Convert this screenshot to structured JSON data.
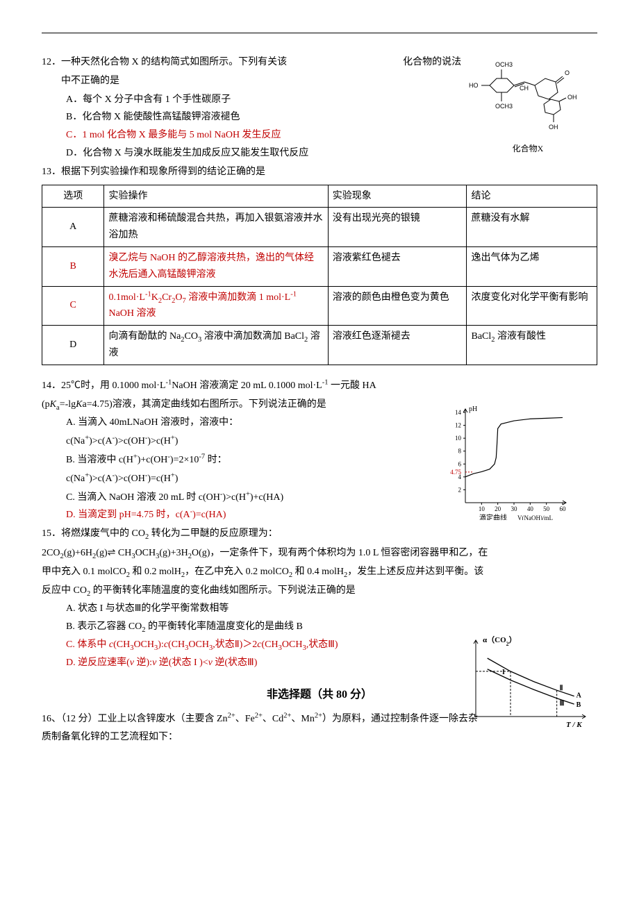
{
  "q12": {
    "num": "12．",
    "stem_a": "一种天然化合物 X 的结构简式如图所示。下列有关该",
    "stem_b": "化合物的说法",
    "stem_c": "中不正确的是",
    "A": "A．每个 X 分子中含有 1 个手性碳原子",
    "B": "B．化合物 X 能使酸性高锰酸钾溶液褪色",
    "C": "C．1 mol 化合物 X 最多能与 5 mol NaOH 发生反应",
    "D": "D．化合物 X 与溴水既能发生加成反应又能发生取代反应",
    "caption": "化合物X",
    "fig": {
      "labels": {
        "OCH3a": "OCH3",
        "HO": "HO",
        "OCH3b": "OCH3",
        "O": "O",
        "OH1": "OH",
        "OH2": "OH",
        "CH": "CH"
      }
    }
  },
  "q13": {
    "num": "13．",
    "stem": "根据下列实验操作和现象所得到的结论正确的是",
    "head": {
      "opt": "选项",
      "op": "实验操作",
      "ph": "实验现象",
      "con": "结论"
    },
    "A": {
      "opt": "A",
      "op": "蔗糖溶液和稀硫酸混合共热，再加入银氨溶液并水浴加热",
      "ph": "没有出现光亮的银镜",
      "con": "蔗糖没有水解"
    },
    "B": {
      "opt": "B",
      "op": "溴乙烷与 NaOH 的乙醇溶液共热，逸出的气体经水洗后通入高锰酸钾溶液",
      "ph": "溶液紫红色褪去",
      "con": "逸出气体为乙烯"
    },
    "C": {
      "opt": "C",
      "op_a": "0.1mol·L",
      "op_b": "K",
      "op_c": "Cr",
      "op_d": "O",
      "op_e": " 溶液中滴加数滴 1 mol·L",
      "op_f": " NaOH 溶液",
      "ph": "溶液的颜色由橙色变为黄色",
      "con": "浓度变化对化学平衡有影响"
    },
    "D": {
      "opt": "D",
      "op_a": "向滴有酚酞的 Na",
      "op_b": "CO",
      "op_c": " 溶液中滴加数滴加 BaCl",
      "op_d": " 溶液",
      "ph": "溶液红色逐渐褪去",
      "con_a": "BaCl",
      "con_b": " 溶液有酸性"
    }
  },
  "q14": {
    "num": "14．",
    "stem_a": "25℃时，用 0.1000 mol·L",
    "stem_b": "NaOH 溶液滴定 20 mL 0.1000 mol·L",
    "stem_c": " 一元酸 HA",
    "stem_d": "(p",
    "stem_e": "=-lg",
    "stem_f": "a=4.75)溶液，其滴定曲线如右图所示。下列说法正确的是",
    "A1": "A. 当滴入 40mLNaOH 溶液时，溶液中：",
    "A2_a": "c(Na",
    "A2_b": ")>c(A",
    "A2_c": ")>c(OH",
    "A2_d": ")>c(H",
    "A2_e": ")",
    "B1_a": "B. 当溶液中 c(H",
    "B1_b": ")+c(OH",
    "B1_c": ")=2×10",
    "B1_d": " 时：",
    "B2_a": "c(Na",
    "B2_b": ")>c(A",
    "B2_c": ")>c(OH",
    "B2_d": ")=c(H",
    "B2_e": ")",
    "C_a": "C. 当滴入 NaOH 溶液 20 mL 时 c(OH",
    "C_b": ")>c(H",
    "C_c": ")+c(HA)",
    "D_a": "D. 当滴定到 pH=4.75 时，c(A",
    "D_b": ")=c(HA)",
    "chart": {
      "ylabel": "pH",
      "xlabel_a": "滴定曲线",
      "xlabel_b": "V(NaOH)/mL",
      "ytick_positions": [
        2,
        4,
        6,
        8,
        10,
        12,
        14
      ],
      "ytick_labels": [
        "2",
        "4",
        "6",
        "8",
        "10",
        "12",
        "14"
      ],
      "xtick_positions": [
        10,
        20,
        30,
        40,
        50,
        60
      ],
      "xtick_labels": [
        "10",
        "20",
        "30",
        "40",
        "50",
        "60"
      ],
      "marker_y": 4.75,
      "marker_label": "4.75",
      "xlim": [
        0,
        60
      ],
      "ylim": [
        0,
        14
      ],
      "curve": [
        [
          0,
          4.0
        ],
        [
          5,
          4.5
        ],
        [
          10,
          4.8
        ],
        [
          15,
          5.2
        ],
        [
          18,
          6.0
        ],
        [
          19,
          7.0
        ],
        [
          19.5,
          9.0
        ],
        [
          20,
          11.5
        ],
        [
          22,
          12.2
        ],
        [
          30,
          12.7
        ],
        [
          40,
          13.0
        ],
        [
          50,
          13.1
        ],
        [
          60,
          13.2
        ]
      ],
      "colors": {
        "axis": "#000",
        "curve": "#000",
        "marker": "#c00000",
        "text": "#000"
      }
    }
  },
  "q15": {
    "num": "15．",
    "stem_a": "将燃煤废气中的  CO",
    "stem_b": "  转化为二甲醚的反应原理为：",
    "eq_a": "2CO",
    "eq_b": "(g)+6H",
    "eq_c": "(g)",
    "eq_d": " CH",
    "eq_e": "OCH",
    "eq_f": "(g)+3H",
    "eq_g": "O(g)，一定条件下，现有两个体积均为 1.0 L 恒容密闭容器甲和乙，在",
    "stem_c": "甲中充入 0.1 molCO",
    "stem_d": " 和 0.2 molH",
    "stem_e": "，在乙中充入 0.2 molCO",
    "stem_f": " 和 0.4 molH",
    "stem_g": "，发生上述反应并达到平衡。该",
    "stem_h": "反应中 CO",
    "stem_i": " 的平衡转化率随温度的变化曲线如图所示。下列说法正确的是",
    "A": "A. 状态 I 与状态Ⅲ的化学平衡常数相等",
    "B_a": "B. 表示乙容器 CO",
    "B_b": " 的平衡转化率随温度变化的是曲线 B",
    "C_a": "C. 体系中 ",
    "C_b": "c",
    "C_c": "(CH",
    "C_d": "OCH",
    "C_e": "):",
    "C_f": "c",
    "C_g": "(CH",
    "C_h": "OCH",
    "C_i": ",状态Ⅱ)＞2",
    "C_j": "c",
    "C_k": "(CH",
    "C_l": "OCH",
    "C_m": ",状态Ⅲ)",
    "D_a": "D. 逆反应速率(",
    "D_b": "v",
    "D_c": " 逆):",
    "D_d": "v",
    "D_e": " 逆(状态 I )<",
    "D_f": "v",
    "D_g": " 逆(状态Ⅲ)",
    "chart": {
      "ylabel_a": "α（CO",
      "ylabel_b": "）",
      "xlabel": "T / K",
      "labels": {
        "I": "I",
        "II": "Ⅱ",
        "III": "Ⅲ",
        "A": "A",
        "B": "B"
      },
      "colors": {
        "axis": "#000",
        "curve": "#000"
      },
      "curveA": [
        [
          20,
          80
        ],
        [
          60,
          62
        ],
        [
          100,
          48
        ],
        [
          140,
          36
        ],
        [
          170,
          28
        ]
      ],
      "curveB": [
        [
          20,
          65
        ],
        [
          60,
          50
        ],
        [
          100,
          37
        ],
        [
          140,
          25
        ],
        [
          170,
          17
        ]
      ],
      "pI": [
        60,
        62
      ],
      "pII": [
        140,
        36
      ],
      "pIII": [
        140,
        25
      ]
    }
  },
  "section": "非选择题（共 80 分）",
  "q16": {
    "num": "16、",
    "stem_a": "（12 分）工业上以含锌废水（主要含 Zn",
    "stem_b": "、Fe",
    "stem_c": "、Cd",
    "stem_d": "、Mn",
    "stem_e": "）为原料，通过控制条件逐一除去杂",
    "stem_f": "质制备氧化锌的工艺流程如下："
  }
}
